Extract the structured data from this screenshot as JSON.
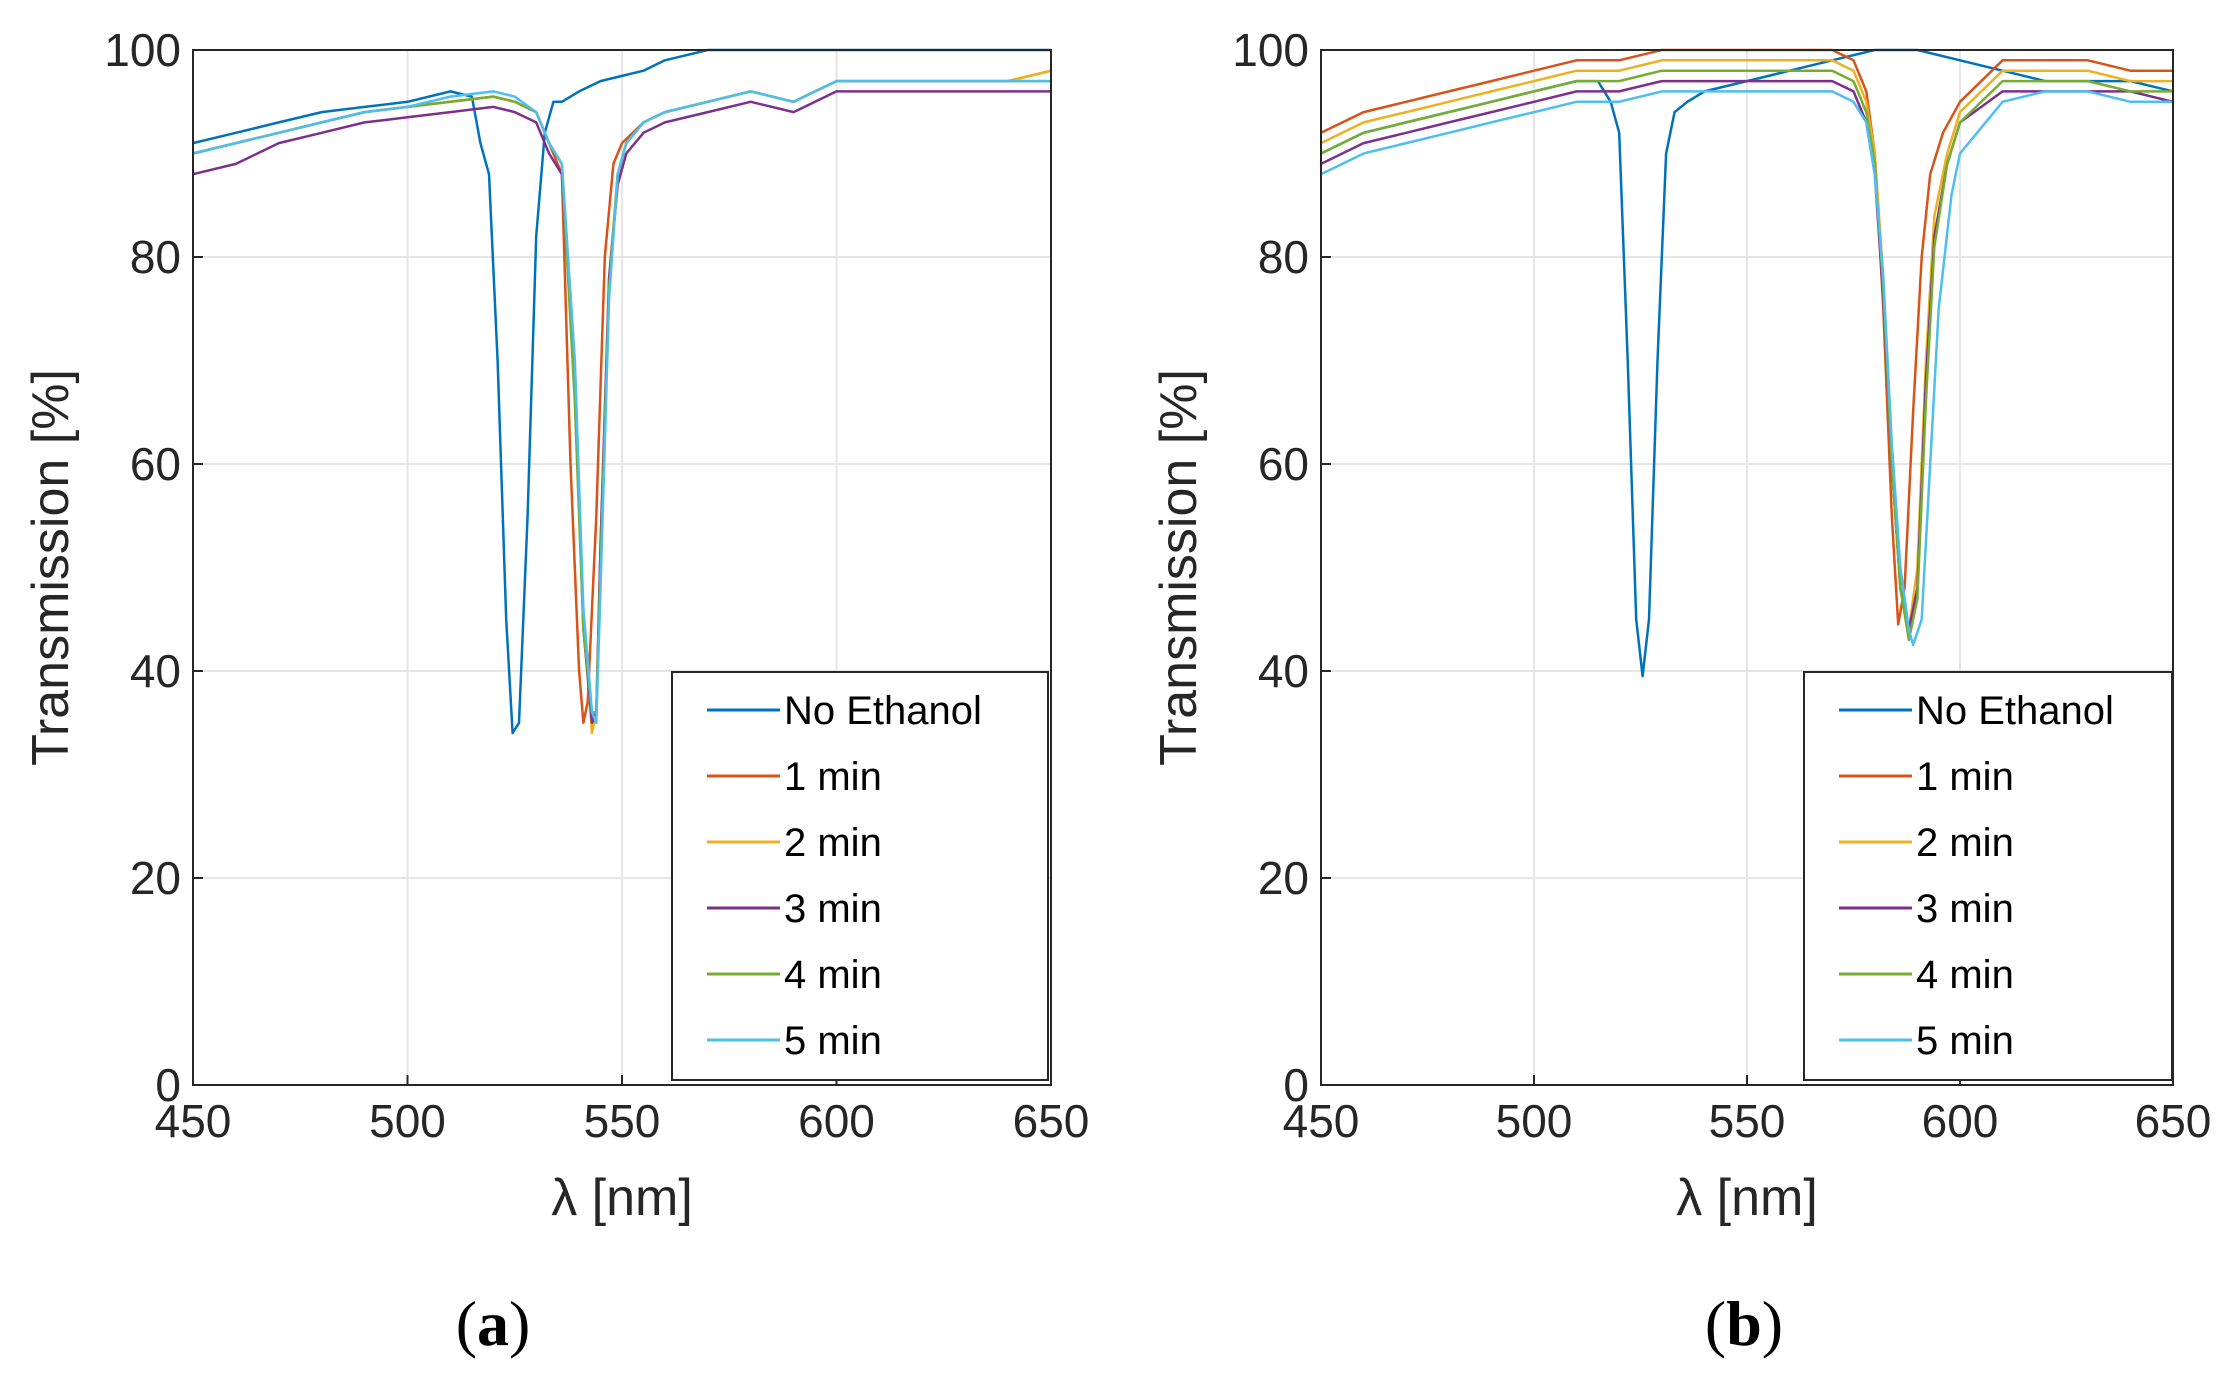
{
  "colors": {
    "axis": "#262626",
    "grid": "#e6e6e6",
    "series": [
      "#0072BD",
      "#D95319",
      "#EDB120",
      "#7E2F8E",
      "#77AC30",
      "#4DBEEE"
    ]
  },
  "chart_data": [
    {
      "type": "line",
      "panel": {
        "open": "(",
        "letter": "a",
        "close": ")"
      },
      "xlabel": "λ [nm]",
      "ylabel": "Transmission [%]",
      "xlim": [
        450,
        650
      ],
      "ylim": [
        0,
        100
      ],
      "xticks": [
        "450",
        "500",
        "550",
        "600",
        "650"
      ],
      "yticks": [
        "0",
        "20",
        "40",
        "60",
        "80",
        "100"
      ],
      "grid": true,
      "legend_position": "bottom-right",
      "series": [
        {
          "name": "No Ethanol",
          "x": [
            450,
            460,
            470,
            480,
            490,
            500,
            505,
            510,
            515,
            517,
            519,
            521,
            523,
            524.5,
            526,
            528,
            530,
            532,
            534,
            536,
            540,
            545,
            550,
            555,
            560,
            565,
            570,
            575,
            580,
            585,
            590,
            595,
            600,
            605,
            610,
            615,
            620,
            630,
            640,
            650
          ],
          "y": [
            91,
            92,
            93,
            94,
            94.5,
            95,
            95.5,
            96,
            95.5,
            91,
            88,
            70,
            45,
            34,
            35,
            55,
            82,
            92,
            95,
            95,
            96,
            97,
            97.5,
            98,
            99,
            99.5,
            100,
            100,
            100,
            100,
            100,
            100,
            100,
            100,
            100,
            100,
            100,
            100,
            100,
            100
          ]
        },
        {
          "name": "1 min",
          "x": [
            450,
            460,
            470,
            480,
            490,
            500,
            510,
            520,
            525,
            530,
            533,
            536,
            538,
            540,
            541,
            542,
            544,
            546,
            548,
            550,
            555,
            560,
            570,
            580,
            590,
            600,
            610,
            620,
            630,
            640,
            650
          ],
          "y": [
            90,
            91,
            92,
            93,
            94,
            94.5,
            95,
            95.5,
            95,
            94,
            91,
            88,
            60,
            40,
            35,
            37,
            55,
            80,
            89,
            91,
            93,
            94,
            95,
            96,
            95,
            97,
            97,
            97,
            97,
            97,
            98
          ]
        },
        {
          "name": "2 min",
          "x": [
            450,
            460,
            470,
            480,
            490,
            500,
            510,
            520,
            525,
            530,
            533,
            536,
            539,
            541,
            543,
            544,
            545,
            547,
            549,
            551,
            555,
            560,
            570,
            580,
            590,
            600,
            610,
            620,
            630,
            640,
            650
          ],
          "y": [
            90,
            91,
            92,
            93,
            94,
            94.5,
            95,
            95.5,
            95,
            94,
            91,
            89,
            70,
            45,
            34,
            36,
            52,
            78,
            88,
            91,
            93,
            94,
            95,
            96,
            95,
            97,
            97,
            97,
            97,
            97,
            98
          ]
        },
        {
          "name": "3 min",
          "x": [
            450,
            460,
            470,
            480,
            490,
            500,
            510,
            520,
            525,
            530,
            533,
            536,
            539,
            541,
            543,
            544,
            545,
            547,
            549,
            551,
            555,
            560,
            570,
            580,
            590,
            600,
            610,
            620,
            630,
            640,
            650
          ],
          "y": [
            88,
            89,
            91,
            92,
            93,
            93.5,
            94,
            94.5,
            94,
            93,
            90,
            88,
            68,
            44,
            35,
            36,
            52,
            78,
            87,
            90,
            92,
            93,
            94,
            95,
            94,
            96,
            96,
            96,
            96,
            96,
            96
          ]
        },
        {
          "name": "4 min",
          "x": [
            450,
            460,
            470,
            480,
            490,
            500,
            510,
            520,
            525,
            530,
            533,
            536,
            539,
            541,
            543,
            544,
            545,
            547,
            549,
            551,
            555,
            560,
            570,
            580,
            590,
            600,
            610,
            620,
            630,
            640,
            650
          ],
          "y": [
            90,
            91,
            92,
            93,
            94,
            94.5,
            95,
            95.5,
            95,
            94,
            91,
            89,
            66,
            44,
            36,
            36,
            50,
            77,
            88,
            91,
            93,
            94,
            95,
            96,
            95,
            97,
            97,
            97,
            97,
            97,
            97
          ]
        },
        {
          "name": "5 min",
          "x": [
            450,
            460,
            470,
            480,
            490,
            500,
            510,
            520,
            525,
            530,
            533,
            536,
            539,
            541,
            543,
            544,
            545,
            547,
            549,
            551,
            555,
            560,
            570,
            580,
            590,
            600,
            610,
            620,
            630,
            640,
            650
          ],
          "y": [
            90,
            91,
            92,
            93,
            94,
            94.5,
            95.5,
            96,
            95.5,
            94,
            91,
            89,
            70,
            46,
            36,
            35,
            48,
            76,
            88,
            91,
            93,
            94,
            95,
            96,
            95,
            97,
            97,
            97,
            97,
            97,
            97
          ]
        }
      ]
    },
    {
      "type": "line",
      "panel": {
        "open": "(",
        "letter": "b",
        "close": ")"
      },
      "xlabel": "λ [nm]",
      "ylabel": "Transmission [%]",
      "xlim": [
        450,
        650
      ],
      "ylim": [
        0,
        100
      ],
      "xticks": [
        "450",
        "500",
        "550",
        "600",
        "650"
      ],
      "yticks": [
        "0",
        "20",
        "40",
        "60",
        "80",
        "100"
      ],
      "grid": true,
      "legend_position": "bottom-right",
      "series": [
        {
          "name": "No Ethanol",
          "x": [
            450,
            460,
            470,
            480,
            490,
            500,
            510,
            515,
            518,
            520,
            522,
            524,
            525.5,
            527,
            529,
            531,
            533,
            536,
            540,
            550,
            560,
            570,
            580,
            590,
            600,
            610,
            620,
            630,
            640,
            650
          ],
          "y": [
            90,
            92,
            93,
            94,
            95,
            96,
            97,
            97,
            95,
            92,
            70,
            45,
            39.5,
            45,
            70,
            90,
            94,
            95,
            96,
            97,
            98,
            99,
            100,
            100,
            99,
            98,
            97,
            97,
            97,
            96
          ]
        },
        {
          "name": "1 min",
          "x": [
            450,
            460,
            470,
            480,
            490,
            500,
            510,
            520,
            530,
            540,
            550,
            560,
            570,
            575,
            578,
            580,
            582,
            584,
            585.5,
            587,
            589,
            591,
            593,
            596,
            600,
            610,
            620,
            630,
            640,
            650
          ],
          "y": [
            92,
            94,
            95,
            96,
            97,
            98,
            99,
            99,
            100,
            100,
            100,
            100,
            100,
            99,
            96,
            90,
            75,
            55,
            44.5,
            48,
            65,
            80,
            88,
            92,
            95,
            99,
            99,
            99,
            98,
            98
          ]
        },
        {
          "name": "2 min",
          "x": [
            450,
            460,
            470,
            480,
            490,
            500,
            510,
            520,
            530,
            540,
            550,
            560,
            570,
            575,
            578,
            580,
            582,
            584,
            586,
            588,
            590,
            592,
            594,
            597,
            600,
            610,
            620,
            630,
            640,
            650
          ],
          "y": [
            91,
            93,
            94,
            95,
            96,
            97,
            98,
            98,
            99,
            99,
            99,
            99,
            99,
            98,
            95,
            90,
            78,
            60,
            48,
            44,
            50,
            70,
            84,
            90,
            94,
            98,
            98,
            98,
            97,
            97
          ]
        },
        {
          "name": "3 min",
          "x": [
            450,
            460,
            470,
            480,
            490,
            500,
            510,
            520,
            530,
            540,
            550,
            560,
            570,
            575,
            578,
            580,
            582,
            584,
            586,
            588,
            590,
            592,
            594,
            597,
            600,
            610,
            620,
            630,
            640,
            650
          ],
          "y": [
            89,
            91,
            92,
            93,
            94,
            95,
            96,
            96,
            97,
            97,
            97,
            97,
            97,
            96,
            93,
            88,
            76,
            60,
            48,
            44,
            48,
            68,
            82,
            89,
            93,
            96,
            96,
            96,
            96,
            95
          ]
        },
        {
          "name": "4 min",
          "x": [
            450,
            460,
            470,
            480,
            490,
            500,
            510,
            520,
            530,
            540,
            550,
            560,
            570,
            575,
            578,
            580,
            582,
            584,
            586,
            588,
            590,
            592,
            594,
            597,
            600,
            610,
            620,
            630,
            640,
            650
          ],
          "y": [
            90,
            92,
            93,
            94,
            95,
            96,
            97,
            97,
            98,
            98,
            98,
            98,
            98,
            97,
            94,
            89,
            77,
            60,
            48,
            43,
            47,
            66,
            81,
            89,
            93,
            97,
            97,
            97,
            96,
            96
          ]
        },
        {
          "name": "5 min",
          "x": [
            450,
            460,
            470,
            480,
            490,
            500,
            510,
            520,
            530,
            540,
            550,
            560,
            570,
            575,
            578,
            580,
            582,
            584,
            586,
            588,
            589,
            591,
            593,
            595,
            598,
            600,
            610,
            620,
            630,
            640,
            650
          ],
          "y": [
            88,
            90,
            91,
            92,
            93,
            94,
            95,
            95,
            96,
            96,
            96,
            96,
            96,
            95,
            93,
            88,
            78,
            62,
            50,
            44,
            42.5,
            45,
            60,
            75,
            86,
            90,
            95,
            96,
            96,
            95,
            95
          ]
        }
      ]
    }
  ]
}
